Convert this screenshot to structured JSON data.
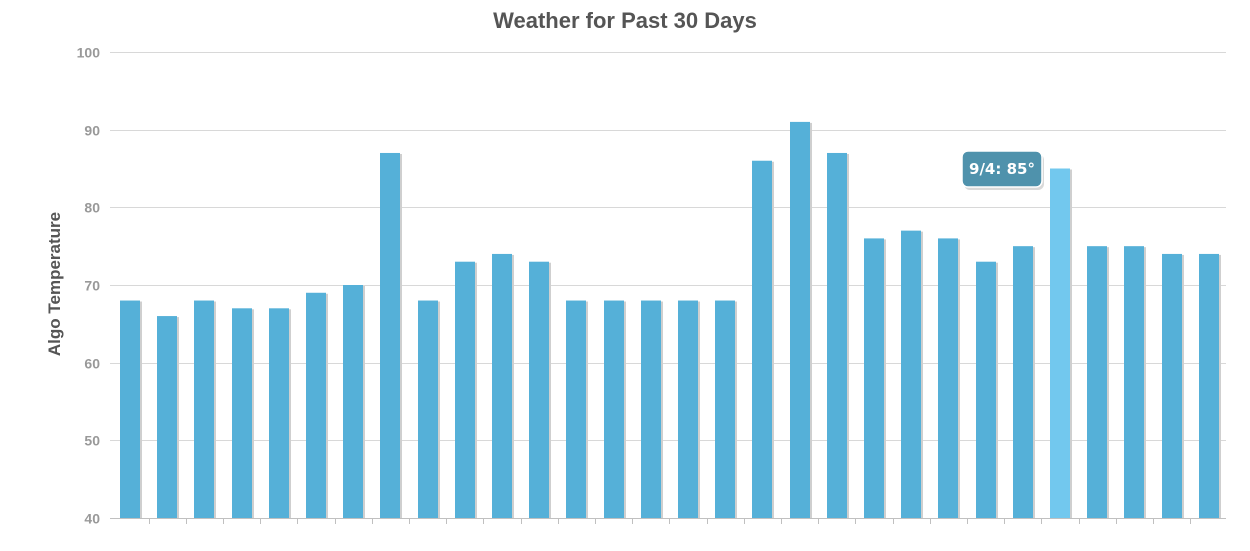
{
  "chart_data": {
    "type": "bar",
    "title": "Weather for Past 30 Days",
    "xlabel": "",
    "ylabel": "Algo Temperature",
    "ylim": [
      40,
      100
    ],
    "y_ticks": [
      40,
      50,
      60,
      70,
      80,
      90,
      100
    ],
    "grid": true,
    "categories": [
      "",
      "",
      "",
      "",
      "",
      "",
      "",
      "",
      "",
      "",
      "",
      "",
      "",
      "",
      "",
      "",
      "",
      "",
      "",
      "",
      "",
      "",
      "",
      "",
      "",
      "",
      "",
      "",
      "",
      ""
    ],
    "values": [
      68,
      66,
      68,
      67,
      67,
      69,
      70,
      87,
      68,
      73,
      74,
      73,
      68,
      68,
      68,
      68,
      68,
      86,
      91,
      87,
      76,
      77,
      76,
      73,
      75,
      85,
      75,
      75,
      74,
      74
    ],
    "highlight_index": 25,
    "tooltip": "9/4: 85°",
    "colors": {
      "bar": "#55b0d8",
      "bar_highlight": "#72c8ee",
      "bar_shadow": "#cfcfcf",
      "grid": "#d8d8d8",
      "tooltip_bg": "#4f92ac"
    }
  }
}
